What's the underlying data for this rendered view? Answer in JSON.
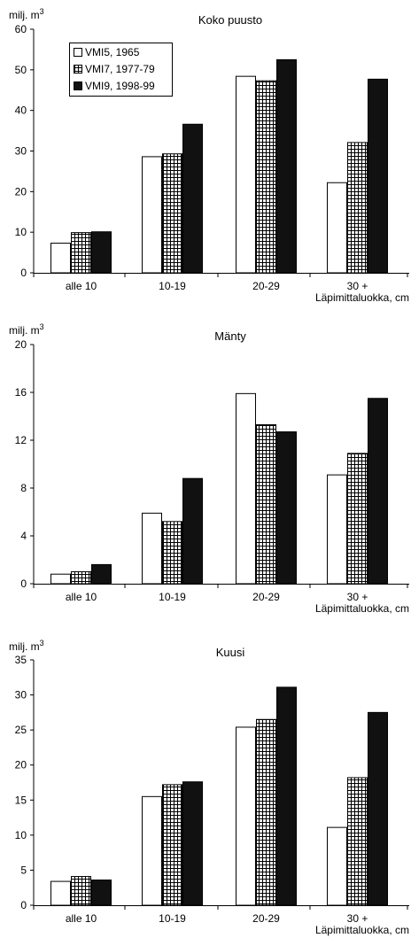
{
  "chart_data": [
    {
      "type": "bar",
      "title": "Koko puusto",
      "ylabel": "milj. m",
      "ylabel_sup": "3",
      "xlabel": "Läpimittaluokka, cm",
      "ylim": [
        0,
        60
      ],
      "yticks": [
        0,
        10,
        20,
        30,
        40,
        50,
        60
      ],
      "categories": [
        "alle 10",
        "10-19",
        "20-29",
        "30 +"
      ],
      "series": [
        {
          "name": "VMI5, 1965",
          "values": [
            7.3,
            28.6,
            48.4,
            22.2
          ]
        },
        {
          "name": "VMI7, 1977-79",
          "values": [
            9.9,
            29.3,
            47.3,
            32.1
          ]
        },
        {
          "name": "VMI9, 1998-99",
          "values": [
            10.1,
            36.6,
            52.5,
            47.7
          ]
        }
      ],
      "legend": "top-left"
    },
    {
      "type": "bar",
      "title": "Mänty",
      "ylabel": "milj. m",
      "ylabel_sup": "3",
      "xlabel": "Läpimittaluokka, cm",
      "ylim": [
        0,
        20
      ],
      "yticks": [
        0,
        4,
        8,
        12,
        16,
        20
      ],
      "categories": [
        "alle 10",
        "10-19",
        "20-29",
        "30 +"
      ],
      "series": [
        {
          "name": "VMI5, 1965",
          "values": [
            0.8,
            5.9,
            15.9,
            9.1
          ]
        },
        {
          "name": "VMI7, 1977-79",
          "values": [
            1.0,
            5.2,
            13.3,
            10.9
          ]
        },
        {
          "name": "VMI9, 1998-99",
          "values": [
            1.6,
            8.8,
            12.7,
            15.5
          ]
        }
      ]
    },
    {
      "type": "bar",
      "title": "Kuusi",
      "ylabel": "milj. m",
      "ylabel_sup": "3",
      "xlabel": "Läpimittaluokka, cm",
      "ylim": [
        0,
        35
      ],
      "yticks": [
        0,
        5,
        10,
        15,
        20,
        25,
        30,
        35
      ],
      "categories": [
        "alle 10",
        "10-19",
        "20-29",
        "30 +"
      ],
      "series": [
        {
          "name": "VMI5, 1965",
          "values": [
            3.4,
            15.5,
            25.4,
            11.1
          ]
        },
        {
          "name": "VMI7, 1977-79",
          "values": [
            4.1,
            17.2,
            26.5,
            18.2
          ]
        },
        {
          "name": "VMI9, 1998-99",
          "values": [
            3.6,
            17.6,
            31.1,
            27.5
          ]
        }
      ]
    }
  ],
  "colors": {
    "VMI5": "#ffffff",
    "VMI7": "hatch-grid",
    "VMI9": "#111111"
  }
}
